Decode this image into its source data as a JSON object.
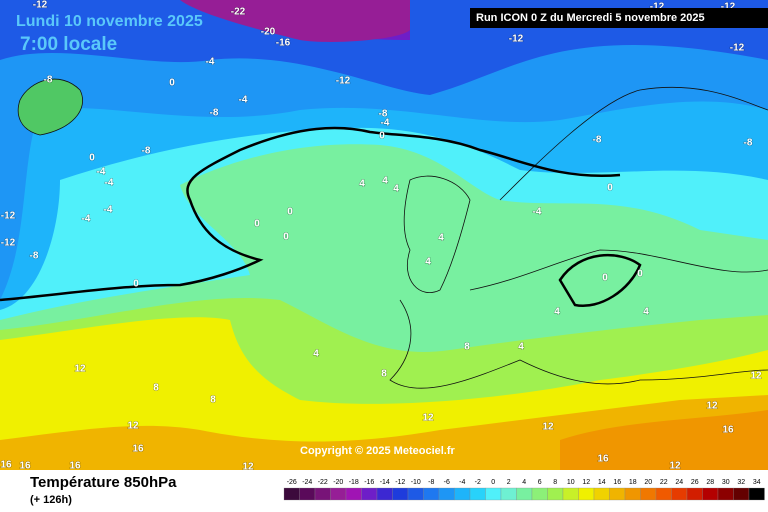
{
  "map": {
    "title": "Lundi 10 novembre 2025",
    "subtitle": "7:00 locale",
    "run": "Run ICON 0 Z du Mercredi 5 novembre 2025",
    "copyright": "Copyright © 2025 Meteociel.fr",
    "variable": "Température 850hPa",
    "lead": "(+ 126h)",
    "contour_labels": [
      -12,
      -22,
      -20,
      -16,
      -12,
      -12,
      -12,
      -12,
      -4,
      -8,
      -12,
      0,
      -8,
      -4,
      -8,
      -4,
      0,
      -8,
      -8,
      -8,
      0,
      -4,
      -4,
      4,
      4,
      4,
      0,
      0,
      -4,
      0,
      0,
      -12,
      -12,
      -8,
      0,
      4,
      4,
      0,
      0,
      4,
      4,
      4,
      8,
      4,
      8,
      12,
      8,
      8,
      12,
      12,
      12,
      12,
      16,
      12,
      16,
      16,
      16,
      16,
      12,
      12,
      16,
      -4,
      -4
    ],
    "legend": {
      "ticks": [
        -26,
        -24,
        -22,
        -20,
        -18,
        -16,
        -14,
        -12,
        -10,
        -8,
        -6,
        -4,
        -2,
        0,
        2,
        4,
        6,
        8,
        10,
        12,
        14,
        16,
        18,
        20,
        22,
        24,
        26,
        28,
        30,
        32,
        34
      ],
      "colors": [
        "#3c0a3c",
        "#5a0a5a",
        "#781478",
        "#961e96",
        "#a014b4",
        "#6e1ec8",
        "#3c28d2",
        "#1e3cdc",
        "#1e5ae6",
        "#1e78f0",
        "#1e96f5",
        "#1eb4fa",
        "#28d2fa",
        "#50f0fa",
        "#6ef0d2",
        "#78f0a0",
        "#8cf078",
        "#a0f050",
        "#c8f028",
        "#f0f000",
        "#f0d200",
        "#f0b400",
        "#f09600",
        "#f07800",
        "#f05a00",
        "#e63c00",
        "#d21e00",
        "#b40000",
        "#8c0000",
        "#640000",
        "#000000"
      ]
    }
  }
}
